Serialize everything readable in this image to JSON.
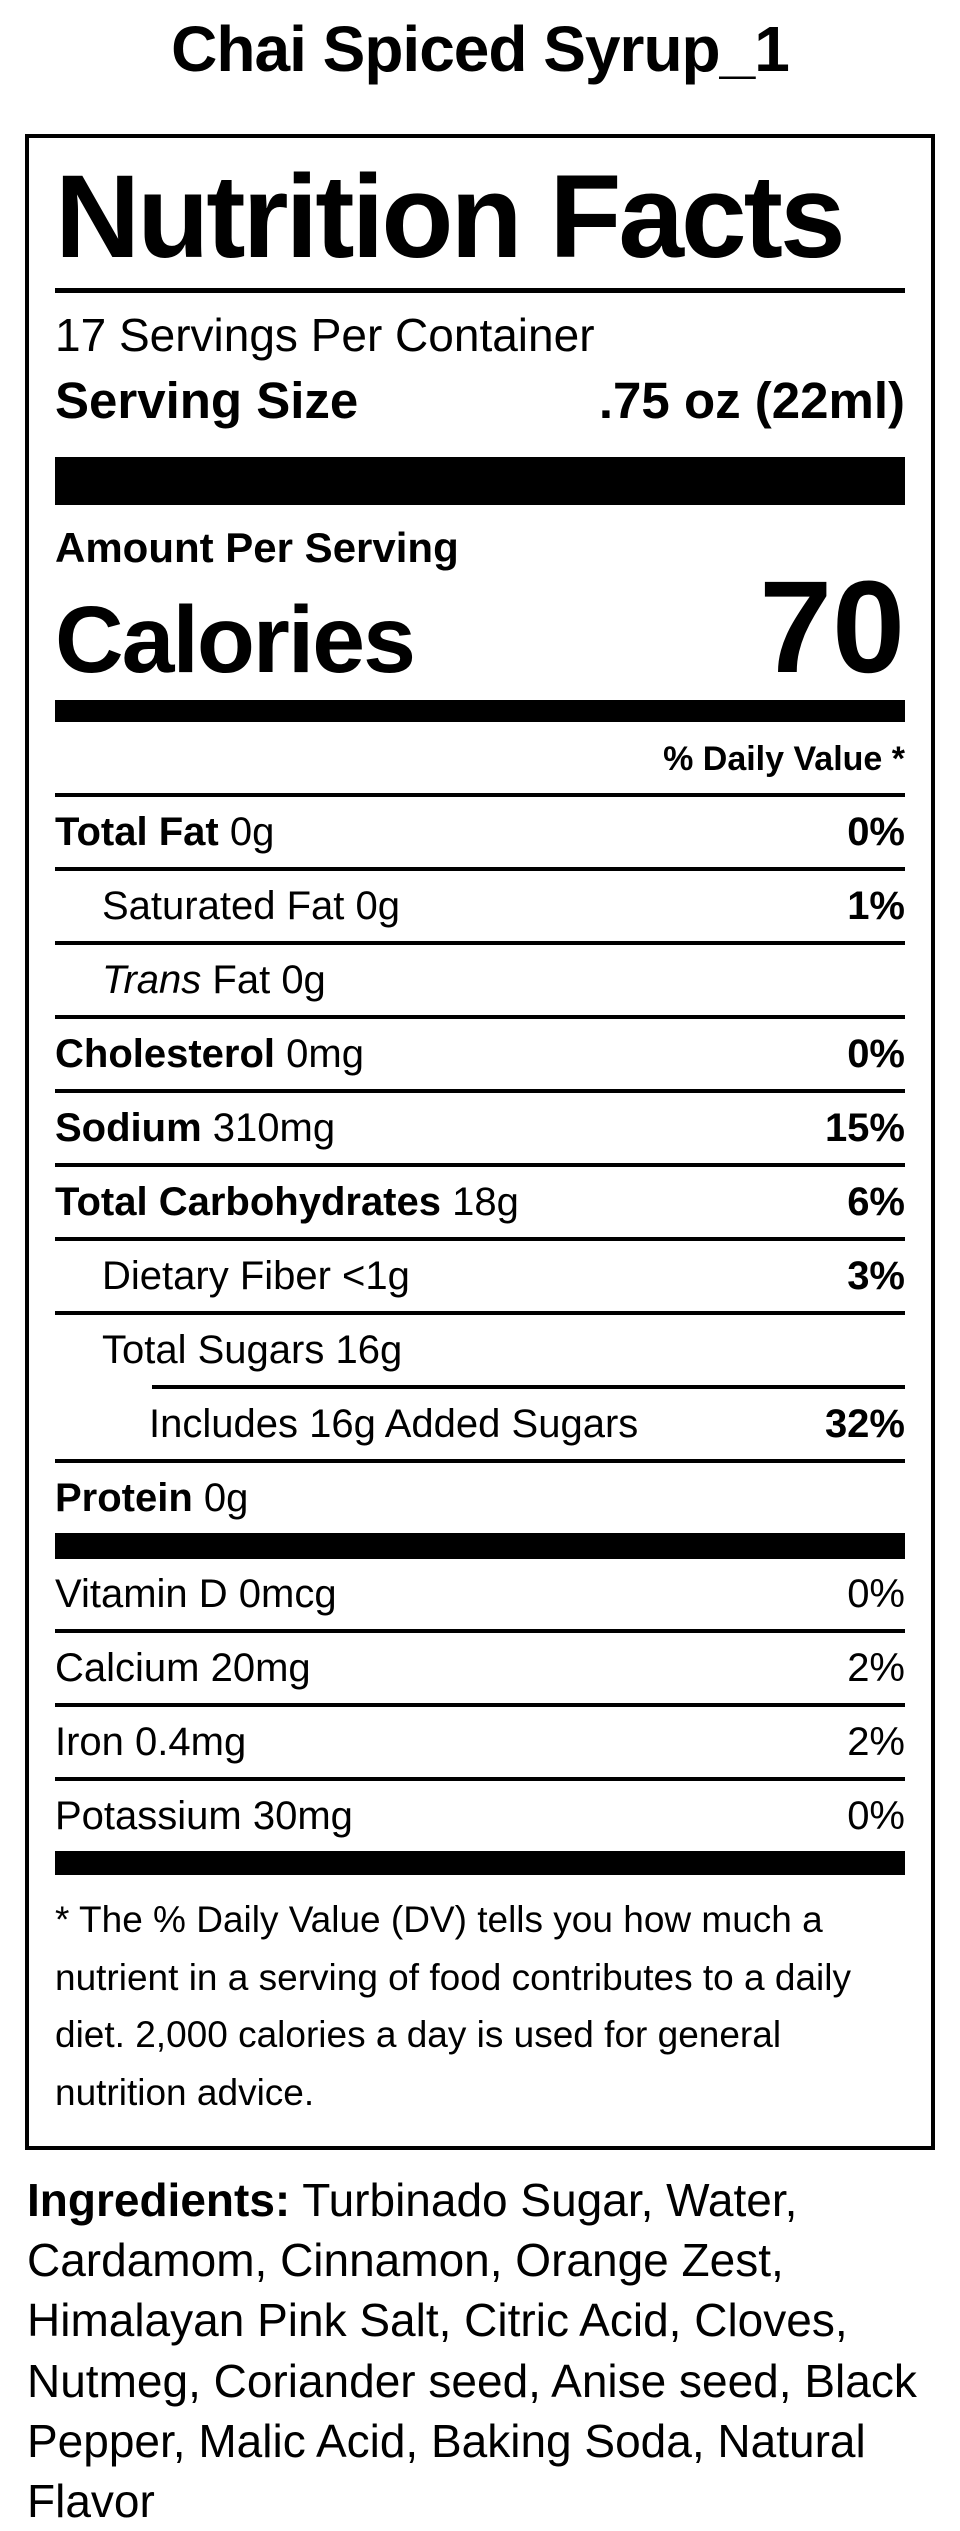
{
  "page_title": "Chai Spiced Syrup_1",
  "label": {
    "title": "Nutrition Facts",
    "servings_per_container": "17 Servings Per Container",
    "serving_size_label": "Serving Size",
    "serving_size_value": ".75 oz (22ml)",
    "amount_per_serving": "Amount Per Serving",
    "calories_label": "Calories",
    "calories_value": "70",
    "daily_value_header": "% Daily Value *",
    "rows": [
      {
        "bold": "Total Fat",
        "rest": "0g",
        "dv": "0%"
      },
      {
        "plain": "Saturated Fat 0g",
        "dv": "1%"
      },
      {
        "italic": "Trans",
        "rest": "Fat 0g",
        "dv": ""
      },
      {
        "bold": "Cholesterol",
        "rest": "0mg",
        "dv": "0%"
      },
      {
        "bold": "Sodium",
        "rest": "310mg",
        "dv": "15%"
      },
      {
        "bold": "Total Carbohydrates",
        "rest": "18g",
        "dv": "6%"
      },
      {
        "plain": "Dietary Fiber <1g",
        "dv": "3%"
      },
      {
        "plain": "Total Sugars 16g",
        "dv": ""
      },
      {
        "plain": "Includes 16g Added Sugars",
        "dv": "32%"
      },
      {
        "bold": "Protein",
        "rest": "0g",
        "dv": ""
      }
    ],
    "micronutrients": [
      {
        "plain": "Vitamin D 0mcg",
        "dv": "0%"
      },
      {
        "plain": "Calcium 20mg",
        "dv": "2%"
      },
      {
        "plain": "Iron 0.4mg",
        "dv": "2%"
      },
      {
        "plain": "Potassium 30mg",
        "dv": "0%"
      }
    ],
    "footnote": "* The % Daily Value (DV) tells you how much a nutrient in a serving of food contributes to a daily diet. 2,000 calories a day is used for general nutrition advice."
  },
  "ingredients": {
    "label": "Ingredients:",
    "text": "Turbinado Sugar, Water, Cardamom, Cinnamon, Orange Zest, Himalayan Pink Salt, Citric Acid, Cloves, Nutmeg, Coriander seed, Anise seed, Black Pepper, Malic Acid, Baking Soda, Natural Flavor"
  },
  "colors": {
    "text": "#000000",
    "background": "#ffffff"
  }
}
